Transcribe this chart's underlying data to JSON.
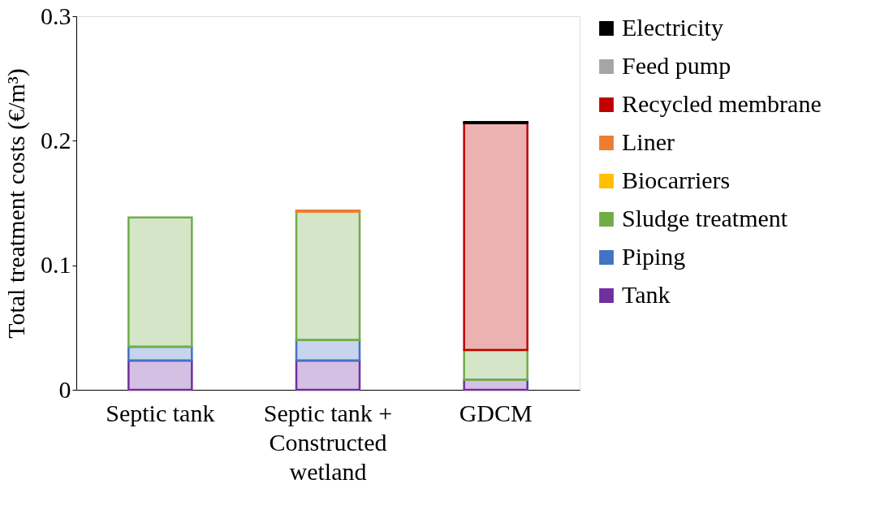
{
  "chart_data": {
    "type": "bar",
    "stacked": true,
    "ylabel": "Total treatment costs (€/m³)",
    "categories": [
      "Septic tank",
      "Septic tank +\nConstructed\nwetland",
      "GDCM"
    ],
    "series": [
      {
        "name": "Tank",
        "color": "#7030a0",
        "values": [
          0.0235,
          0.0235,
          0.008
        ]
      },
      {
        "name": "Piping",
        "color": "#4472c4",
        "values": [
          0.011,
          0.0165,
          null
        ]
      },
      {
        "name": "Sludge treatment",
        "color": "#70ad47",
        "values": [
          0.104,
          0.103,
          0.024
        ]
      },
      {
        "name": "Biocarriers",
        "color": "#ffc000",
        "values": [
          null,
          null,
          null
        ]
      },
      {
        "name": "Liner",
        "color": "#ed7d31",
        "values": [
          null,
          0.001,
          null
        ]
      },
      {
        "name": "Recycled membrane",
        "color": "#c00000",
        "values": [
          null,
          null,
          0.182
        ]
      },
      {
        "name": "Feed pump",
        "color": "#a5a5a5",
        "values": [
          null,
          null,
          null
        ]
      },
      {
        "name": "Electricity",
        "color": "#000000",
        "values": [
          null,
          null,
          0.001
        ]
      }
    ],
    "ylim": [
      0,
      0.3
    ],
    "yticks": [
      0,
      0.1,
      0.2,
      0.3
    ],
    "grid": false,
    "legend": "right"
  }
}
